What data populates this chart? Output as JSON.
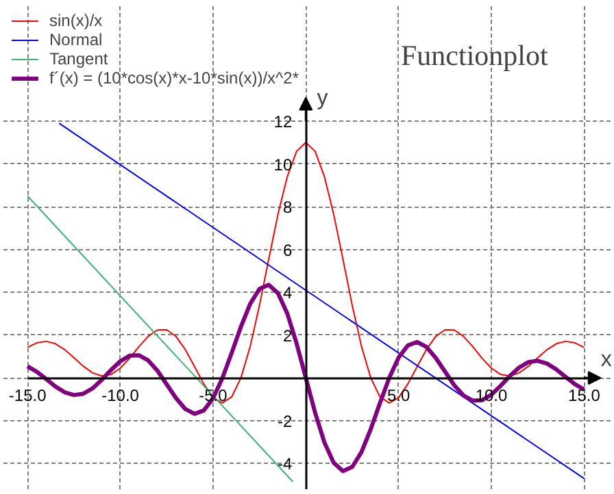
{
  "chart_data": {
    "type": "line",
    "title": "Functionplot",
    "xlabel": "x",
    "ylabel": "y",
    "xlim": [
      -16.3,
      16.5
    ],
    "ylim": [
      -5.2,
      17.5
    ],
    "xticks": [
      {
        "value": -15,
        "label": "-15.0"
      },
      {
        "value": -10,
        "label": "-10.0"
      },
      {
        "value": -5,
        "label": "-5.0"
      },
      {
        "value": 0,
        "label": null
      },
      {
        "value": 5,
        "label": "5.0"
      },
      {
        "value": 10,
        "label": "10.0"
      },
      {
        "value": 15,
        "label": "15.0"
      }
    ],
    "yticks": [
      -4,
      -2,
      {
        "value": 0,
        "label": null
      },
      2,
      4,
      6,
      8,
      10,
      12
    ],
    "grid": true,
    "legend": "top left",
    "series": [
      {
        "name": "sin(x)/x",
        "color": "#ff0000",
        "x": [
          -15,
          -14.5,
          -14,
          -13.5,
          -13,
          -12.5,
          -12,
          -11.5,
          -11,
          -10.5,
          -10,
          -9.5,
          -9,
          -8.5,
          -8,
          -7.5,
          -7,
          -6.5,
          -6,
          -5.5,
          -5,
          -4.5,
          -4,
          -3.5,
          -3,
          -2.5,
          -2,
          -1.5,
          -1,
          -0.5,
          0,
          0.5,
          1,
          1.5,
          2,
          2.5,
          3,
          3.5,
          4,
          4.5,
          5,
          5.5,
          6,
          6.5,
          7,
          7.5,
          8,
          8.5,
          9,
          9.5,
          10,
          10.5,
          11,
          11.5,
          12,
          12.5,
          13,
          13.5,
          14,
          14.5,
          15
        ],
        "values": [
          1.43,
          1.64,
          1.71,
          1.6,
          1.32,
          0.95,
          0.55,
          0.24,
          0.09,
          0.16,
          0.46,
          0.92,
          1.46,
          1.94,
          2.24,
          2.25,
          1.94,
          1.33,
          0.53,
          -0.28,
          -0.92,
          -1.17,
          -0.89,
          0.0,
          1.47,
          3.39,
          5.55,
          7.65,
          9.41,
          10.59,
          11,
          10.59,
          9.41,
          7.65,
          5.55,
          3.39,
          1.47,
          0.0,
          -0.89,
          -1.17,
          -0.92,
          -0.28,
          0.53,
          1.33,
          1.94,
          2.25,
          2.24,
          1.94,
          1.46,
          0.92,
          0.46,
          0.16,
          0.09,
          0.24,
          0.55,
          0.95,
          1.32,
          1.6,
          1.71,
          1.64,
          1.43
        ]
      },
      {
        "name": "Normal",
        "color": "#0000ff",
        "x": [
          -13.3,
          15
        ],
        "values": [
          11.9,
          -4.7
        ]
      },
      {
        "name": "Tangent",
        "color": "#3cb371",
        "x": [
          -15,
          -0.7
        ],
        "values": [
          8.5,
          -4.85
        ]
      },
      {
        "name": "f´(x) = (10*cos(x)*x-10*sin(x))/x^2*",
        "color": "#800080",
        "x": [
          -15,
          -14.5,
          -14,
          -13.5,
          -13,
          -12.5,
          -12,
          -11.5,
          -11,
          -10.5,
          -10,
          -9.5,
          -9,
          -8.5,
          -8,
          -7.5,
          -7,
          -6.5,
          -6,
          -5.5,
          -5,
          -4.5,
          -4,
          -3.5,
          -3,
          -2.5,
          -2,
          -1.5,
          -1,
          -0.5,
          0,
          0.5,
          1,
          1.5,
          2,
          2.5,
          3,
          3.5,
          4,
          4.5,
          5,
          5.5,
          6,
          6.5,
          7,
          7.5,
          8,
          8.5,
          9,
          9.5,
          10,
          10.5,
          11,
          11.5,
          12,
          12.5,
          13,
          13.5,
          14,
          14.5,
          15
        ],
        "values": [
          0.54,
          0.29,
          -0.05,
          -0.4,
          -0.67,
          -0.8,
          -0.74,
          -0.49,
          -0.09,
          0.37,
          0.78,
          1.04,
          1.06,
          0.82,
          0.34,
          -0.3,
          -0.94,
          -1.45,
          -1.68,
          -1.52,
          -0.95,
          -0.01,
          1.16,
          2.39,
          3.46,
          4.16,
          4.35,
          3.96,
          3.01,
          1.62,
          0,
          -1.62,
          -3.01,
          -3.96,
          -4.35,
          -4.16,
          -3.46,
          -2.39,
          -1.16,
          0.01,
          0.95,
          1.52,
          1.68,
          1.45,
          0.94,
          0.3,
          -0.34,
          -0.82,
          -1.06,
          -1.04,
          -0.78,
          -0.37,
          0.09,
          0.49,
          0.74,
          0.8,
          0.67,
          0.4,
          0.05,
          -0.29,
          -0.54
        ]
      }
    ]
  }
}
